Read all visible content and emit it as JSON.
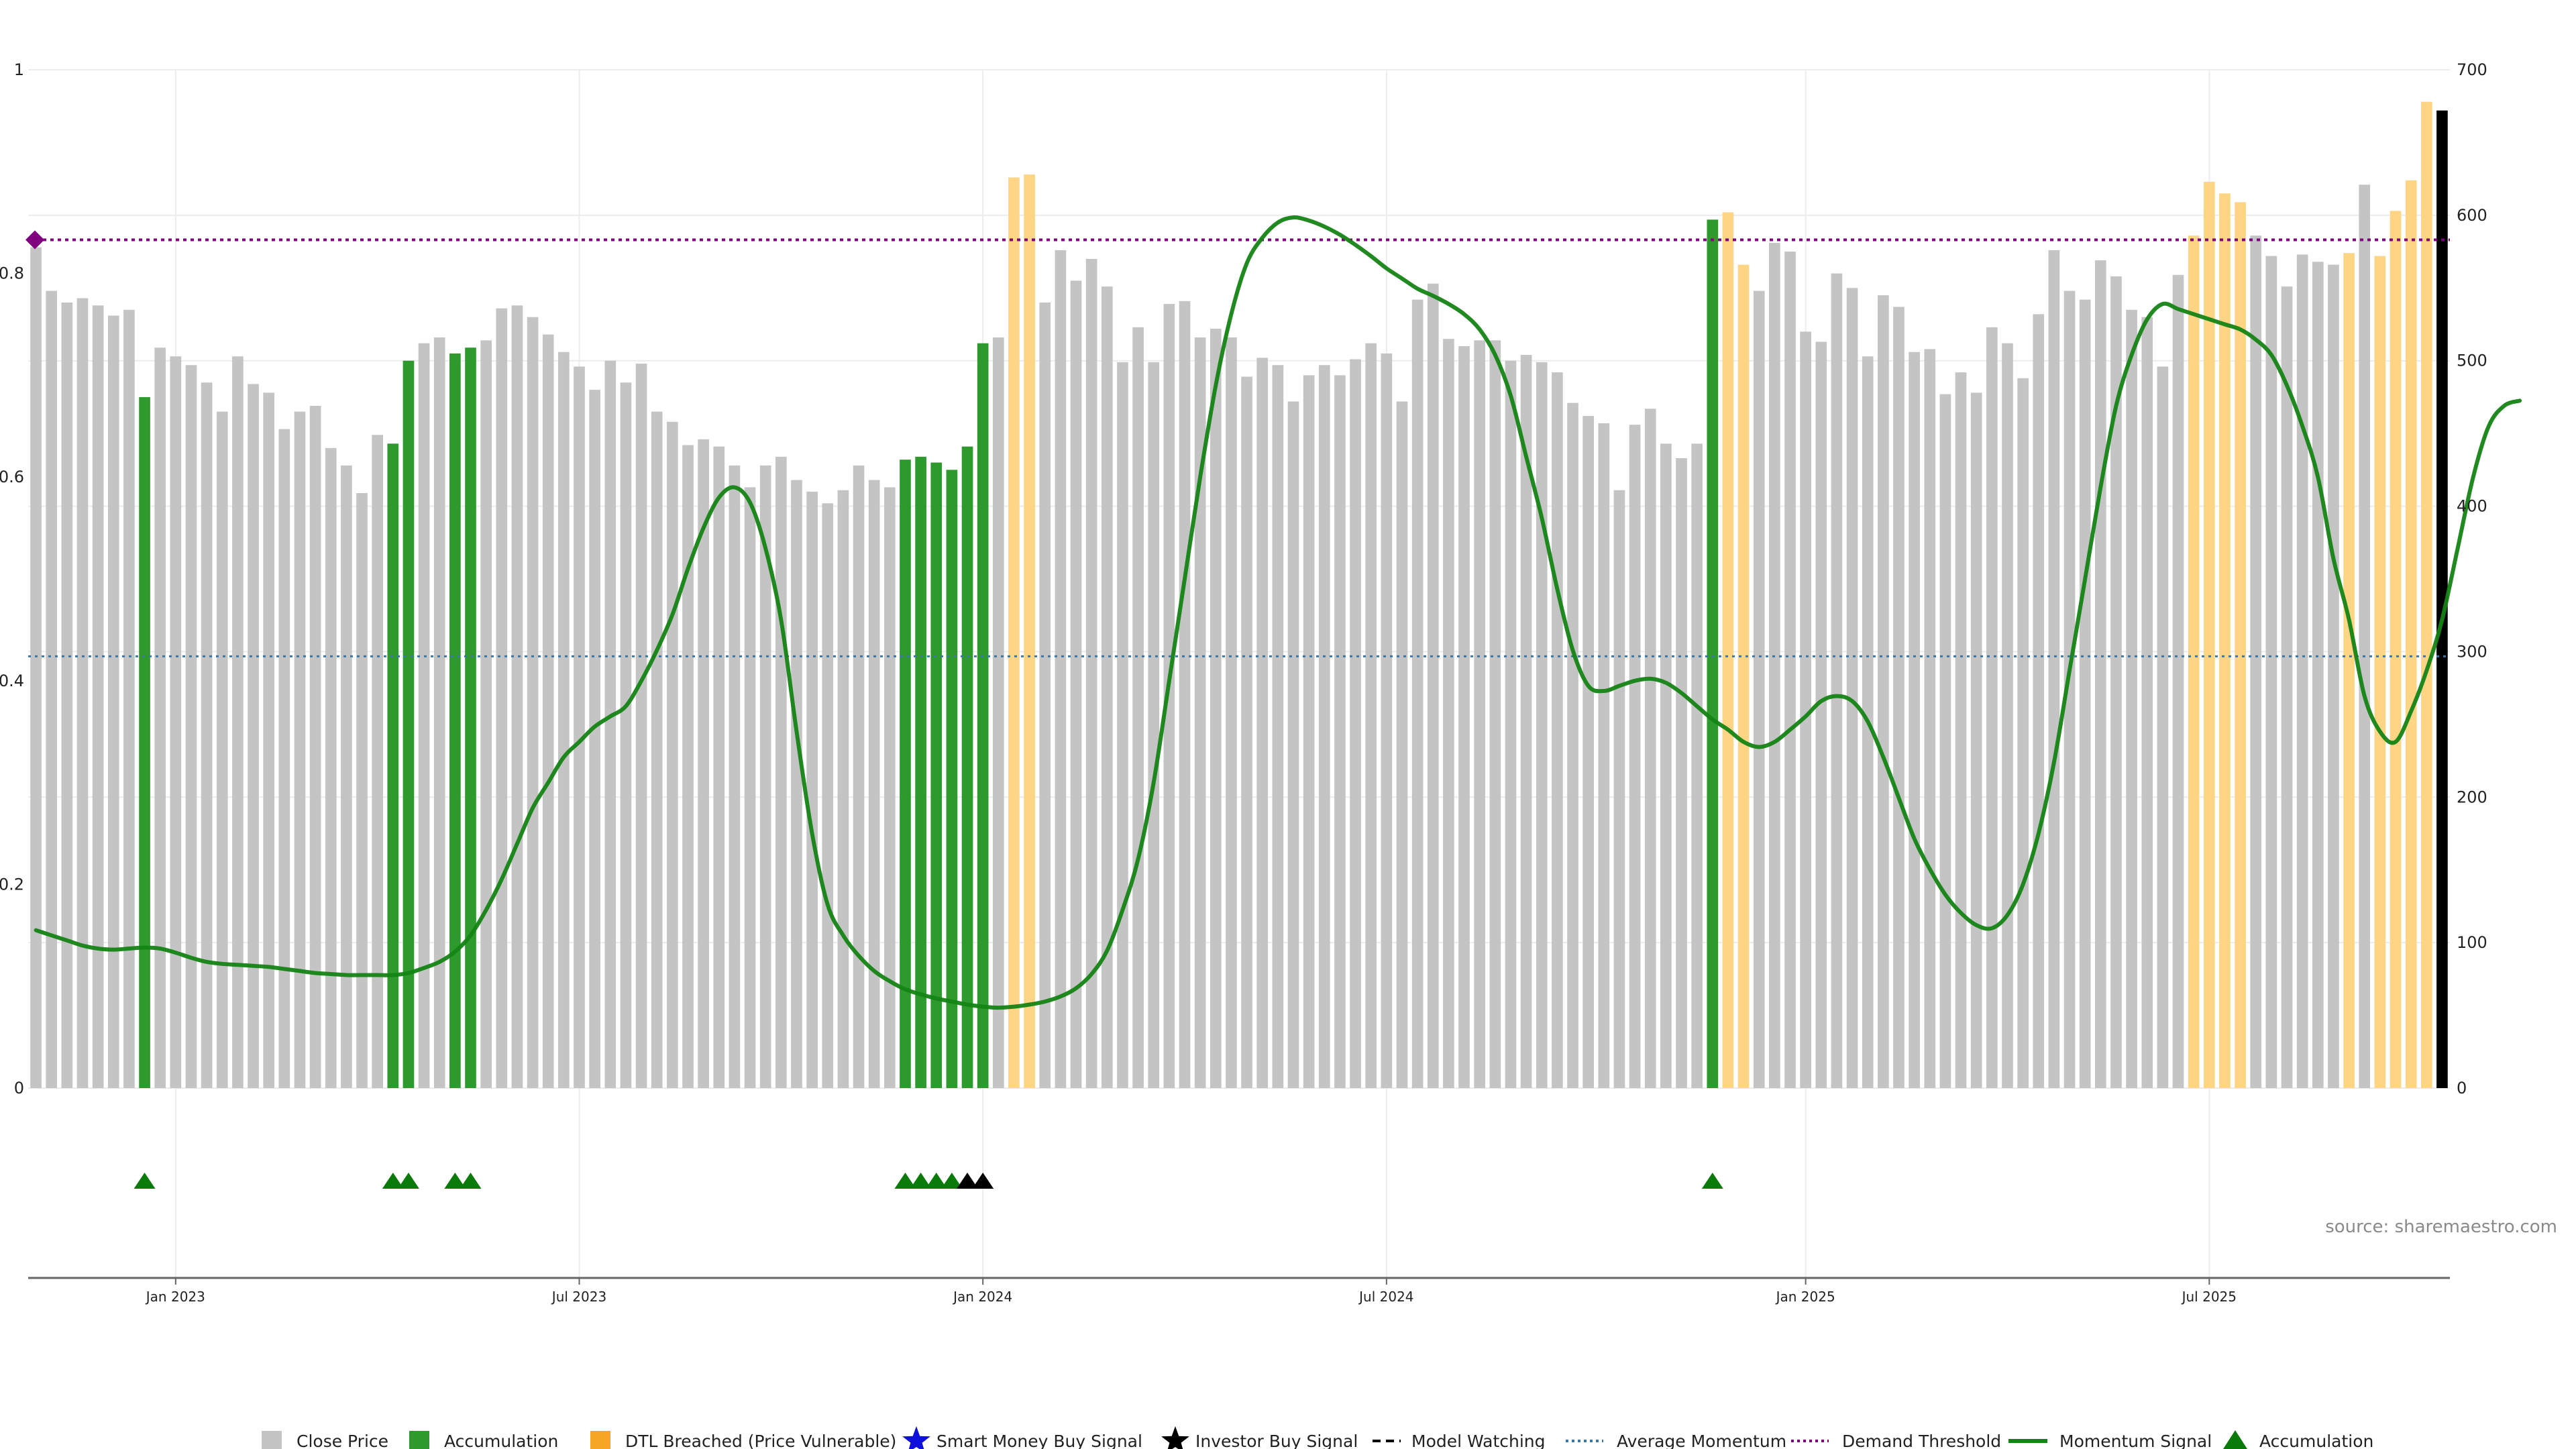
{
  "chart_data": {
    "type": "bar",
    "title": "",
    "xlabel": "",
    "ylabel": "",
    "left_axis": {
      "ylim": [
        0,
        1
      ],
      "ticks": [
        "0",
        "0.2",
        "0.4",
        "0.6",
        "0.8",
        "1"
      ]
    },
    "right_axis": {
      "ylim": [
        0,
        700
      ],
      "ticks": [
        "0",
        "100",
        "200",
        "300",
        "400",
        "500",
        "600",
        "700"
      ]
    },
    "x_ticks": [
      "Jan 2023",
      "Jul 2023",
      "Jan 2024",
      "Jul 2024",
      "Jan 2025",
      "Jul 2025"
    ],
    "grid": true,
    "legend_position": "bottom",
    "close_price": [
      578,
      548,
      540,
      543,
      538,
      531,
      535,
      475,
      509,
      503,
      497,
      485,
      465,
      503,
      484,
      478,
      453,
      465,
      469,
      440,
      428,
      409,
      449,
      443,
      500,
      512,
      516,
      505,
      509,
      514,
      536,
      538,
      530,
      518,
      506,
      496,
      480,
      500,
      485,
      498,
      465,
      458,
      442,
      446,
      441,
      428,
      413,
      428,
      434,
      418,
      410,
      402,
      411,
      428,
      418,
      413,
      432,
      434,
      430,
      425,
      441,
      512,
      516,
      626,
      628,
      540,
      576,
      555,
      570,
      551,
      499,
      523,
      499,
      539,
      541,
      516,
      522,
      516,
      489,
      502,
      497,
      472,
      490,
      497,
      490,
      501,
      512,
      505,
      472,
      542,
      553,
      515,
      510,
      514,
      514,
      500,
      504,
      499,
      492,
      471,
      462,
      457,
      411,
      456,
      467,
      443,
      433,
      443,
      597,
      602,
      566,
      548,
      581,
      575,
      520,
      513,
      560,
      550,
      503,
      545,
      537,
      506,
      508,
      477,
      492,
      478,
      523,
      512,
      488,
      532,
      576,
      548,
      542,
      569,
      558,
      535,
      530,
      496,
      559,
      586,
      623,
      615,
      609,
      586,
      572,
      551,
      573,
      568,
      566,
      574,
      621,
      572,
      603,
      624,
      678,
      672
    ],
    "bar_category": [
      "g",
      "g",
      "g",
      "g",
      "g",
      "g",
      "g",
      "a",
      "g",
      "g",
      "g",
      "g",
      "g",
      "g",
      "g",
      "g",
      "g",
      "g",
      "g",
      "g",
      "g",
      "g",
      "g",
      "a",
      "a",
      "g",
      "g",
      "a",
      "a",
      "g",
      "g",
      "g",
      "g",
      "g",
      "g",
      "g",
      "g",
      "g",
      "g",
      "g",
      "g",
      "g",
      "g",
      "g",
      "g",
      "g",
      "g",
      "g",
      "g",
      "g",
      "g",
      "g",
      "g",
      "g",
      "g",
      "g",
      "a",
      "a",
      "a",
      "a",
      "a",
      "a",
      "g",
      "d",
      "d",
      "g",
      "g",
      "g",
      "g",
      "g",
      "g",
      "g",
      "g",
      "g",
      "g",
      "g",
      "g",
      "g",
      "g",
      "g",
      "g",
      "g",
      "g",
      "g",
      "g",
      "g",
      "g",
      "g",
      "g",
      "g",
      "g",
      "g",
      "g",
      "g",
      "g",
      "g",
      "g",
      "g",
      "g",
      "g",
      "g",
      "g",
      "g",
      "g",
      "g",
      "g",
      "g",
      "g",
      "a",
      "d",
      "d",
      "g",
      "g",
      "g",
      "g",
      "g",
      "g",
      "g",
      "g",
      "g",
      "g",
      "g",
      "g",
      "g",
      "g",
      "g",
      "g",
      "g",
      "g",
      "g",
      "g",
      "g",
      "g",
      "g",
      "g",
      "g",
      "g",
      "g",
      "g",
      "d",
      "d",
      "d",
      "d",
      "g",
      "g",
      "g",
      "g",
      "g",
      "g",
      "d",
      "g",
      "d",
      "d",
      "d",
      "d"
    ],
    "momentum_signal": [
      0.155,
      0.15,
      0.145,
      0.14,
      0.137,
      0.136,
      0.137,
      0.138,
      0.137,
      0.133,
      0.128,
      0.124,
      0.122,
      0.121,
      0.12,
      0.119,
      0.117,
      0.115,
      0.113,
      0.112,
      0.111,
      0.111,
      0.111,
      0.111,
      0.113,
      0.118,
      0.124,
      0.134,
      0.15,
      0.175,
      0.205,
      0.24,
      0.275,
      0.3,
      0.325,
      0.34,
      0.355,
      0.365,
      0.375,
      0.4,
      0.43,
      0.465,
      0.51,
      0.55,
      0.58,
      0.59,
      0.575,
      0.53,
      0.46,
      0.35,
      0.25,
      0.18,
      0.15,
      0.13,
      0.115,
      0.105,
      0.097,
      0.092,
      0.088,
      0.085,
      0.082,
      0.08,
      0.079,
      0.08,
      0.082,
      0.085,
      0.09,
      0.098,
      0.112,
      0.135,
      0.175,
      0.225,
      0.3,
      0.4,
      0.5,
      0.6,
      0.69,
      0.76,
      0.81,
      0.835,
      0.85,
      0.855,
      0.852,
      0.846,
      0.838,
      0.828,
      0.817,
      0.805,
      0.795,
      0.785,
      0.778,
      0.77,
      0.76,
      0.745,
      0.72,
      0.68,
      0.62,
      0.56,
      0.49,
      0.43,
      0.395,
      0.39,
      0.395,
      0.4,
      0.402,
      0.398,
      0.388,
      0.375,
      0.362,
      0.352,
      0.34,
      0.335,
      0.34,
      0.352,
      0.365,
      0.38,
      0.385,
      0.38,
      0.36,
      0.325,
      0.285,
      0.245,
      0.215,
      0.19,
      0.172,
      0.16,
      0.157,
      0.17,
      0.2,
      0.25,
      0.32,
      0.41,
      0.5,
      0.59,
      0.67,
      0.72,
      0.755,
      0.77,
      0.765,
      0.76,
      0.755,
      0.75,
      0.745,
      0.735,
      0.72,
      0.69,
      0.65,
      0.6,
      0.52,
      0.46,
      0.385,
      0.35,
      0.34,
      0.37,
      0.41,
      0.46,
      0.53,
      0.6,
      0.65,
      0.67,
      0.675
    ],
    "accumulation_markers": [
      7,
      23,
      24,
      27,
      28,
      56,
      57,
      58,
      59,
      108
    ],
    "investor_buy_markers": [
      60,
      61
    ],
    "average_momentum": 0.424,
    "demand_threshold": 0.833,
    "legend": [
      {
        "key": "close",
        "label": "Close Price"
      },
      {
        "key": "accum_bar",
        "label": "Accumulation"
      },
      {
        "key": "dtl",
        "label": "DTL Breached (Price Vulnerable)"
      },
      {
        "key": "smart_money",
        "label": "Smart Money Buy Signal"
      },
      {
        "key": "investor",
        "label": "Investor Buy Signal"
      },
      {
        "key": "watching",
        "label": "Model Watching"
      },
      {
        "key": "avg_momentum",
        "label": "Average Momentum"
      },
      {
        "key": "demand",
        "label": "Demand Threshold"
      },
      {
        "key": "momentum",
        "label": "Momentum Signal"
      },
      {
        "key": "accum_marker",
        "label": "Accumulation"
      }
    ],
    "source": "source: sharemaestro.com"
  },
  "colors": {
    "close_bar": "#c4c4c4",
    "accumulation_bar": "#2e9a2e",
    "dtl_bar": "#fdd585",
    "dtl_legend": "#f5a623",
    "smart_money": "#1010dd",
    "investor": "#000000",
    "avg_momentum_line": "#3b78a8",
    "demand_line": "#800080",
    "momentum_line": "#148414",
    "accumulation_marker": "#0a7a0a",
    "grid": "#ececec"
  }
}
